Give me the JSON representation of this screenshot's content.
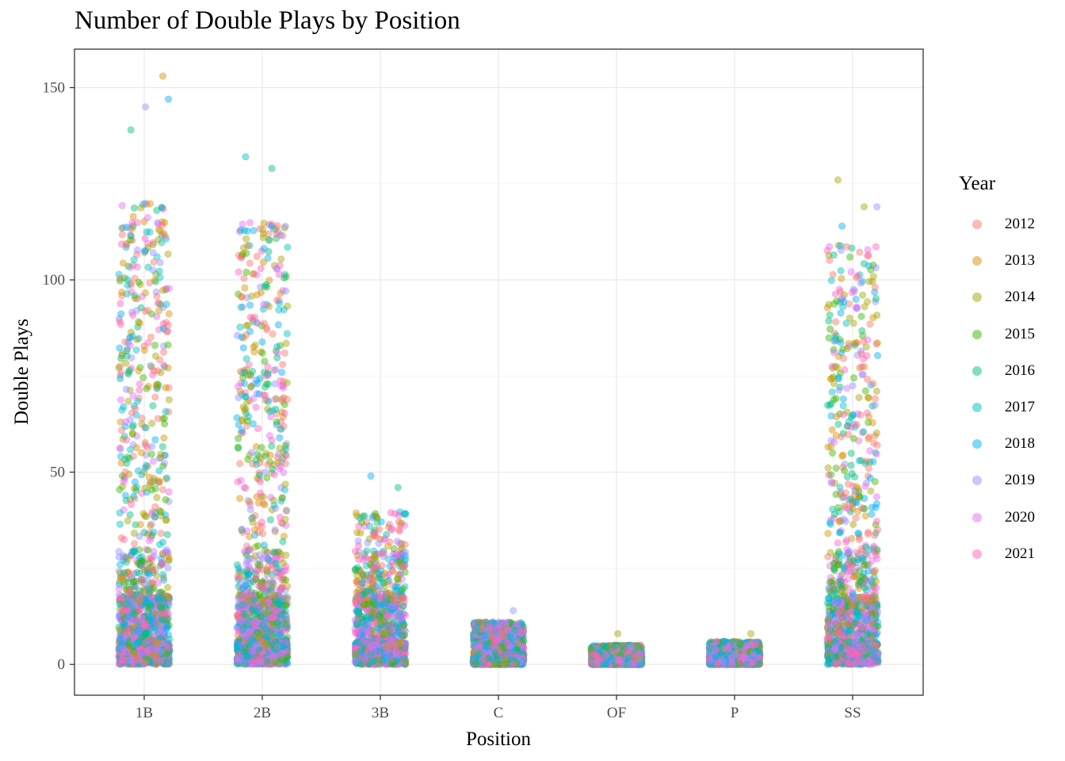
{
  "chart_data": {
    "type": "scatter",
    "subtype": "jitter",
    "title": "Number of Double Plays by Position",
    "xlabel": "Position",
    "ylabel": "Double Plays",
    "categories": [
      "1B",
      "2B",
      "3B",
      "C",
      "OF",
      "P",
      "SS"
    ],
    "ylim": [
      -8,
      160
    ],
    "yticks": [
      0,
      50,
      100,
      150
    ],
    "grid": true,
    "point_alpha": 0.45,
    "legend": {
      "title": "Year",
      "position": "right",
      "items": [
        {
          "label": "2012",
          "color": "#F8766D"
        },
        {
          "label": "2013",
          "color": "#D89000"
        },
        {
          "label": "2014",
          "color": "#A3A500"
        },
        {
          "label": "2015",
          "color": "#39B600"
        },
        {
          "label": "2016",
          "color": "#00BF7D"
        },
        {
          "label": "2017",
          "color": "#00BFC4"
        },
        {
          "label": "2018",
          "color": "#00B0F6"
        },
        {
          "label": "2019",
          "color": "#9590FF"
        },
        {
          "label": "2020",
          "color": "#E76BF3"
        },
        {
          "label": "2021",
          "color": "#FF62BC"
        }
      ]
    },
    "distribution": [
      {
        "category": "1B",
        "max": 153,
        "typical_max": 120
      },
      {
        "category": "2B",
        "max": 132,
        "typical_max": 115
      },
      {
        "category": "3B",
        "max": 49,
        "typical_max": 40
      },
      {
        "category": "C",
        "max": 14,
        "typical_max": 11
      },
      {
        "category": "OF",
        "max": 8,
        "typical_max": 5
      },
      {
        "category": "P",
        "max": 8,
        "typical_max": 6
      },
      {
        "category": "SS",
        "max": 126,
        "typical_max": 110
      }
    ],
    "notable_points": [
      {
        "x": "1B",
        "y": 153,
        "year": "2013"
      },
      {
        "x": "1B",
        "y": 147,
        "year": "2018"
      },
      {
        "x": "1B",
        "y": 145,
        "year": "2019"
      },
      {
        "x": "1B",
        "y": 139,
        "year": "2016"
      },
      {
        "x": "2B",
        "y": 132,
        "year": "2017"
      },
      {
        "x": "2B",
        "y": 129,
        "year": "2016"
      },
      {
        "x": "3B",
        "y": 49,
        "year": "2018"
      },
      {
        "x": "3B",
        "y": 46,
        "year": "2016"
      },
      {
        "x": "C",
        "y": 14,
        "year": "2019"
      },
      {
        "x": "OF",
        "y": 8,
        "year": "2014"
      },
      {
        "x": "P",
        "y": 8,
        "year": "2014"
      },
      {
        "x": "SS",
        "y": 126,
        "year": "2014"
      },
      {
        "x": "SS",
        "y": 119,
        "year": "2019"
      },
      {
        "x": "SS",
        "y": 119,
        "year": "2014"
      },
      {
        "x": "SS",
        "y": 114,
        "year": "2018"
      }
    ]
  }
}
